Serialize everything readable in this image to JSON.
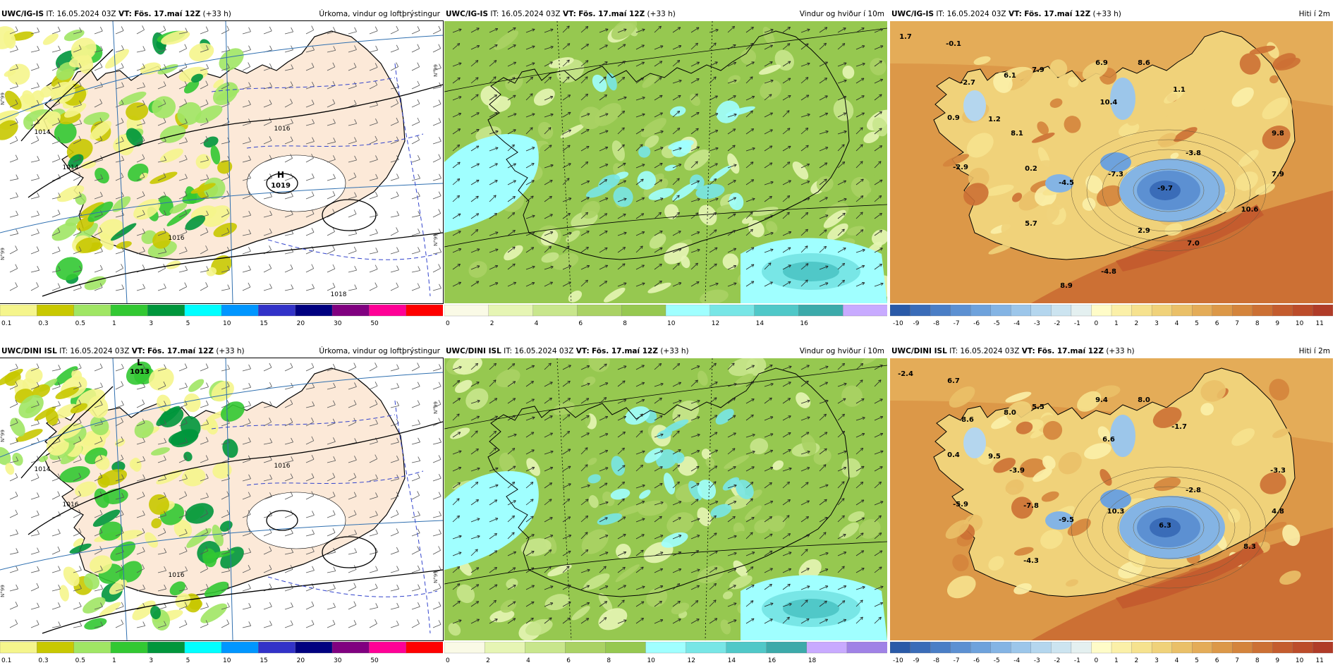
{
  "panels": [
    {
      "id": "top-precip",
      "model": "UWC/IG-IS",
      "it_label": "IT:",
      "it": "16.05.2024 03Z",
      "vt_label": "VT:",
      "vt": "Fös. 17.maí 12Z",
      "lead": "(+33 h)",
      "title": "Úrkoma, vindur og loftþrýstingur",
      "type": "precip",
      "colors": [
        "#f5f58c",
        "#c8c800",
        "#a0e664",
        "#32c832",
        "#00963c",
        "#00ffff",
        "#0096ff",
        "#3232c8",
        "#000080",
        "#800080",
        "#ff0096",
        "#ff0000"
      ],
      "tick_labels": [
        "0.1",
        "0.3",
        "0.5",
        "1",
        "3",
        "5",
        "10",
        "15",
        "20",
        "30",
        "50"
      ],
      "pressure_labels": [
        "1014",
        "1016",
        "1014",
        "1016",
        "1019",
        "1018"
      ],
      "high_label": "H",
      "high_value": "1019",
      "low_label": "",
      "low_value": "",
      "lat_labels": [
        "N°99",
        "N°99",
        "N°99",
        "N°99"
      ]
    },
    {
      "id": "top-wind",
      "model": "UWC/IG-IS",
      "it_label": "IT:",
      "it": "16.05.2024 03Z",
      "vt_label": "VT:",
      "vt": "Fös. 17.maí 12Z",
      "lead": "(+33 h)",
      "title": "Vindur og hviður í 10m",
      "type": "wind",
      "colors": [
        "#fafae6",
        "#e6f5b4",
        "#c8e68c",
        "#aad264",
        "#96c850",
        "#a0ffff",
        "#78e6e6",
        "#50c8c8",
        "#3caaaa",
        "#c8aaff"
      ],
      "tick_labels": [
        "0",
        "2",
        "4",
        "6",
        "8",
        "10",
        "12",
        "14",
        "16"
      ]
    },
    {
      "id": "top-temp",
      "model": "UWC/IG-IS",
      "it_label": "IT:",
      "it": "16.05.2024 03Z",
      "vt_label": "VT:",
      "vt": "Fös. 17.maí 12Z",
      "lead": "(+33 h)",
      "title": "Hiti í 2m",
      "type": "temp",
      "tick_labels": [
        "-10",
        "-9",
        "-8",
        "-7",
        "-6",
        "-5",
        "-4",
        "-3",
        "-2",
        "-1",
        "0",
        "1",
        "2",
        "3",
        "4",
        "5",
        "6",
        "7",
        "8",
        "9",
        "10",
        "11"
      ],
      "point_values": [
        "1.7",
        "-0.1",
        "-2.7",
        "6.1",
        "7.9",
        "6.9",
        "8.6",
        "1.1",
        "0.9",
        "1.2",
        "10.4",
        "8.1",
        "9.8",
        "-3.8",
        "-2.9",
        "0.2",
        "-4.5",
        "-7.3",
        "-9.7",
        "7.9",
        "10.6",
        "5.7",
        "2.9",
        "7.0",
        "-4.8",
        "8.9"
      ]
    },
    {
      "id": "bottom-precip",
      "model": "UWC/DINI ISL",
      "it_label": "IT:",
      "it": "16.05.2024 03Z",
      "vt_label": "VT:",
      "vt": "Fös. 17.maí 12Z",
      "lead": "(+33 h)",
      "title": "Úrkoma, vindur og loftþrýstingur",
      "type": "precip",
      "colors": [
        "#f5f58c",
        "#c8c800",
        "#a0e664",
        "#32c832",
        "#00963c",
        "#00ffff",
        "#0096ff",
        "#3232c8",
        "#000080",
        "#800080",
        "#ff0096",
        "#ff0000"
      ],
      "tick_labels": [
        "0.1",
        "0.3",
        "0.5",
        "1",
        "3",
        "5",
        "10",
        "15",
        "20",
        "30",
        "50"
      ],
      "pressure_labels": [
        "1014",
        "1016",
        "1016",
        "1016",
        "1018"
      ],
      "high_label": "",
      "high_value": "",
      "low_label": "L",
      "low_value": "1013",
      "lat_labels": [
        "N°99",
        "N°99",
        "N°99",
        "N°99"
      ]
    },
    {
      "id": "bottom-wind",
      "model": "UWC/DINI ISL",
      "it_label": "IT:",
      "it": "16.05.2024 03Z",
      "vt_label": "VT:",
      "vt": "Fös. 17.maí 12Z",
      "lead": "(+33 h)",
      "title": "Vindur og hviður í 10m",
      "type": "wind",
      "colors": [
        "#fafae6",
        "#e6f5b4",
        "#c8e68c",
        "#aad264",
        "#96c850",
        "#a0ffff",
        "#78e6e6",
        "#50c8c8",
        "#3caaaa",
        "#c8aaff",
        "#a082e6"
      ],
      "tick_labels": [
        "0",
        "2",
        "4",
        "6",
        "8",
        "10",
        "12",
        "14",
        "16",
        "18"
      ]
    },
    {
      "id": "bottom-temp",
      "model": "UWC/DINI ISL",
      "it_label": "IT:",
      "it": "16.05.2024 03Z",
      "vt_label": "VT:",
      "vt": "Fös. 17.maí 12Z",
      "lead": "(+33 h)",
      "title": "Hiti í 2m",
      "type": "temp",
      "tick_labels": [
        "-10",
        "-9",
        "-8",
        "-7",
        "-6",
        "-5",
        "-4",
        "-3",
        "-2",
        "-1",
        "0",
        "1",
        "2",
        "3",
        "4",
        "5",
        "6",
        "7",
        "8",
        "9",
        "10",
        "11"
      ],
      "point_values": [
        "-2.4",
        "6.7",
        "8.6",
        "8.0",
        "5.5",
        "9.4",
        "8.0",
        "-1.7",
        "0.4",
        "9.5",
        "6.6",
        "-3.9",
        "-3.3",
        "-2.8",
        "-5.9",
        "-7.8",
        "-9.5",
        "10.3",
        "6.3",
        "4.8",
        "8.3",
        "-4.3"
      ]
    }
  ],
  "temp_colors": [
    "#2a5aa8",
    "#3a6cb8",
    "#4a7ec6",
    "#5c90d2",
    "#6ea2dc",
    "#84b4e4",
    "#9cc6ea",
    "#b4d6ee",
    "#cce4f0",
    "#e4f0f0",
    "#fffcc8",
    "#fbf0a8",
    "#f6e28e",
    "#f0d27a",
    "#eac068",
    "#e4ac58",
    "#dc9848",
    "#d4843c",
    "#cc7034",
    "#c45c2e",
    "#bc4c2a",
    "#b03c28"
  ]
}
